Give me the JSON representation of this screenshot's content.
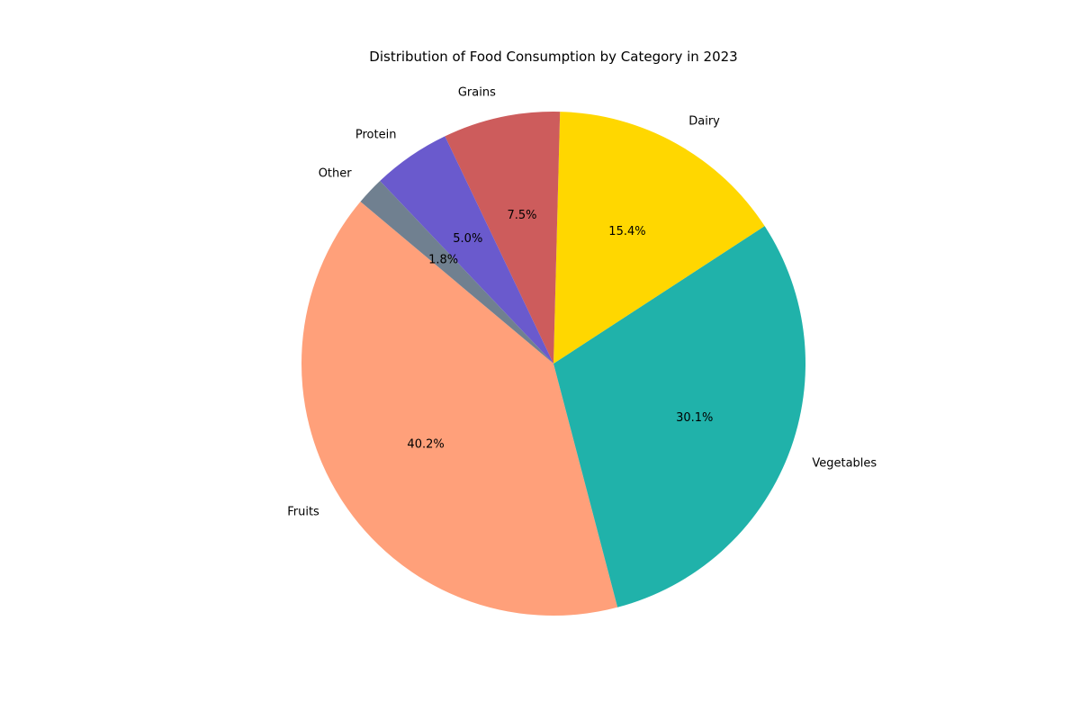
{
  "chart_data": {
    "type": "pie",
    "title": "Distribution of Food Consumption by Category in 2023",
    "slices": [
      {
        "label": "Fruits",
        "value": 40.2,
        "pct_label": "40.2%",
        "color": "#FFA07A"
      },
      {
        "label": "Vegetables",
        "value": 30.1,
        "pct_label": "30.1%",
        "color": "#20B2AA"
      },
      {
        "label": "Dairy",
        "value": 15.4,
        "pct_label": "15.4%",
        "color": "#FFD700"
      },
      {
        "label": "Grains",
        "value": 7.5,
        "pct_label": "7.5%",
        "color": "#CD5C5C"
      },
      {
        "label": "Protein",
        "value": 5.0,
        "pct_label": "5.0%",
        "color": "#6A5ACD"
      },
      {
        "label": "Other",
        "value": 1.8,
        "pct_label": "1.8%",
        "color": "#708090"
      }
    ],
    "start_angle_deg": 140,
    "direction": "counterclockwise",
    "legend": "none"
  }
}
